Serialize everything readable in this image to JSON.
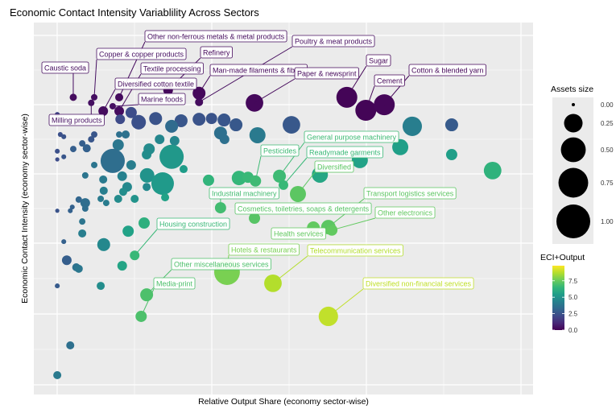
{
  "chart_data": {
    "type": "scatter",
    "title": "Economic Contact Intensity Variablility Across Sectors",
    "xlabel": "Relative Output Share (economy sector-wise)",
    "ylabel": "Economic Contact Intensity (economy sector-wise)",
    "xlim": [
      0,
      100
    ],
    "ylim": [
      0,
      100
    ],
    "grid": true,
    "tick_labels_shown": false,
    "size_legend": {
      "title": "Assets size",
      "values": [
        "0.00",
        "0.25",
        "0.50",
        "0.75",
        "1.00"
      ]
    },
    "color_legend": {
      "title": "ECI+Output",
      "ticks": [
        "0.0",
        "2.5",
        "5.0",
        "7.5"
      ],
      "range": [
        0,
        9.8
      ],
      "palette": "viridis"
    },
    "legend_position": "right",
    "points": [
      {
        "x": 7.9,
        "y": 79.9,
        "size": 0.017,
        "eci": 0.3,
        "label": "Caustic soda"
      },
      {
        "x": 12.1,
        "y": 79.9,
        "size": 0.011,
        "eci": 0.4,
        "label": "Copper & copper products"
      },
      {
        "x": 11.5,
        "y": 78.4,
        "size": 0.011,
        "eci": 0.4,
        "label": "Milling products"
      },
      {
        "x": 17.1,
        "y": 79.9,
        "size": 0.025,
        "eci": 0.3,
        "label": "Other non-ferrous metals & metal products"
      },
      {
        "x": 15.8,
        "y": 77.5,
        "size": 0.011,
        "eci": 0.4,
        "label": "Marine foods"
      },
      {
        "x": 13.9,
        "y": 76.2,
        "size": 0.044,
        "eci": 0.3,
        "label": "Diversified cotton textile"
      },
      {
        "x": 17.1,
        "y": 76.2,
        "size": 0.044,
        "eci": 0.3,
        "label": "Textile processing"
      },
      {
        "x": 26.9,
        "y": 81.8,
        "size": 0.044,
        "eci": 0.2,
        "label": "Refinery"
      },
      {
        "x": 33.1,
        "y": 81.0,
        "size": 0.1,
        "eci": 0.2,
        "label": "Man-made filaments & fibres"
      },
      {
        "x": 33.1,
        "y": 78.6,
        "size": 0.025,
        "eci": 0.3,
        "label": "Poultry & meat products"
      },
      {
        "x": 44.2,
        "y": 78.4,
        "size": 0.22,
        "eci": 0.2,
        "label": "Paper & newsprint"
      },
      {
        "x": 62.7,
        "y": 79.9,
        "size": 0.335,
        "eci": 0.1,
        "label": "Sugar"
      },
      {
        "x": 66.5,
        "y": 76.4,
        "size": 0.335,
        "eci": 0.1,
        "label": "Cement"
      },
      {
        "x": 70.2,
        "y": 77.9,
        "size": 0.335,
        "eci": 0.15,
        "label": "Cotton & blended yarn"
      },
      {
        "x": 4.7,
        "y": 75.3,
        "size": 0.003,
        "eci": 2.0
      },
      {
        "x": 19.5,
        "y": 75.8,
        "size": 0.069,
        "eci": 2.3
      },
      {
        "x": 17.3,
        "y": 74.0,
        "size": 0.044,
        "eci": 2.2
      },
      {
        "x": 21.0,
        "y": 73.2,
        "size": 0.136,
        "eci": 2.4
      },
      {
        "x": 24.4,
        "y": 74.2,
        "size": 0.1,
        "eci": 2.5
      },
      {
        "x": 29.5,
        "y": 73.6,
        "size": 0.1,
        "eci": 2.6
      },
      {
        "x": 27.6,
        "y": 72.1,
        "size": 0.1,
        "eci": 3.4
      },
      {
        "x": 33.1,
        "y": 74.0,
        "size": 0.1,
        "eci": 2.5
      },
      {
        "x": 35.6,
        "y": 74.2,
        "size": 0.069,
        "eci": 2.5
      },
      {
        "x": 38.1,
        "y": 73.8,
        "size": 0.1,
        "eci": 2.6
      },
      {
        "x": 40.5,
        "y": 72.5,
        "size": 0.1,
        "eci": 2.7
      },
      {
        "x": 51.6,
        "y": 72.5,
        "size": 0.22,
        "eci": 2.7
      },
      {
        "x": 37.4,
        "y": 70.3,
        "size": 0.1,
        "eci": 3.6
      },
      {
        "x": 38.2,
        "y": 68.6,
        "size": 0.044,
        "eci": 3.6
      },
      {
        "x": 44.8,
        "y": 69.7,
        "size": 0.177,
        "eci": 4.0
      },
      {
        "x": 75.8,
        "y": 72.1,
        "size": 0.28,
        "eci": 4.2
      },
      {
        "x": 83.7,
        "y": 72.5,
        "size": 0.1,
        "eci": 2.8
      },
      {
        "x": 5.3,
        "y": 69.9,
        "size": 0.003,
        "eci": 2.4
      },
      {
        "x": 6.0,
        "y": 69.3,
        "size": 0.003,
        "eci": 2.5
      },
      {
        "x": 12.1,
        "y": 69.9,
        "size": 0.011,
        "eci": 2.6
      },
      {
        "x": 11.5,
        "y": 68.6,
        "size": 0.011,
        "eci": 2.6
      },
      {
        "x": 9.7,
        "y": 67.5,
        "size": 0.011,
        "eci": 2.9
      },
      {
        "x": 10.6,
        "y": 66.2,
        "size": 0.025,
        "eci": 3.0
      },
      {
        "x": 7.9,
        "y": 66.0,
        "size": 0.011,
        "eci": 2.9
      },
      {
        "x": 4.7,
        "y": 65.4,
        "size": 0.003,
        "eci": 2.4
      },
      {
        "x": 6.0,
        "y": 63.9,
        "size": 0.003,
        "eci": 2.6
      },
      {
        "x": 4.7,
        "y": 63.2,
        "size": 0.001,
        "eci": 2.3
      },
      {
        "x": 17.1,
        "y": 69.9,
        "size": 0.011,
        "eci": 3.6
      },
      {
        "x": 18.4,
        "y": 69.9,
        "size": 0.025,
        "eci": 3.7
      },
      {
        "x": 16.9,
        "y": 67.1,
        "size": 0.069,
        "eci": 3.9
      },
      {
        "x": 15.8,
        "y": 62.8,
        "size": 0.47,
        "eci": 3.5
      },
      {
        "x": 19.5,
        "y": 61.7,
        "size": 0.044,
        "eci": 4.2
      },
      {
        "x": 12.1,
        "y": 61.7,
        "size": 0.011,
        "eci": 3.8
      },
      {
        "x": 10.3,
        "y": 58.9,
        "size": 0.011,
        "eci": 3.8
      },
      {
        "x": 17.7,
        "y": 58.7,
        "size": 0.044,
        "eci": 4.3
      },
      {
        "x": 25.2,
        "y": 68.6,
        "size": 0.044,
        "eci": 4.5
      },
      {
        "x": 28.2,
        "y": 68.2,
        "size": 0.044,
        "eci": 4.5
      },
      {
        "x": 23.1,
        "y": 66.0,
        "size": 0.069,
        "eci": 4.7
      },
      {
        "x": 27.6,
        "y": 63.9,
        "size": 0.47,
        "eci": 5.2
      },
      {
        "x": 30.0,
        "y": 60.6,
        "size": 0.025,
        "eci": 5.4
      },
      {
        "x": 22.6,
        "y": 64.5,
        "size": 0.044,
        "eci": 4.8
      },
      {
        "x": 22.7,
        "y": 58.9,
        "size": 0.136,
        "eci": 5.0
      },
      {
        "x": 25.8,
        "y": 56.7,
        "size": 0.4,
        "eci": 5.3
      },
      {
        "x": 22.6,
        "y": 55.8,
        "size": 0.025,
        "eci": 4.6
      },
      {
        "x": 26.3,
        "y": 53.0,
        "size": 0.025,
        "eci": 5.6
      },
      {
        "x": 18.7,
        "y": 55.8,
        "size": 0.044,
        "eci": 4.6
      },
      {
        "x": 17.9,
        "y": 54.5,
        "size": 0.025,
        "eci": 4.8
      },
      {
        "x": 16.9,
        "y": 52.6,
        "size": 0.025,
        "eci": 4.7
      },
      {
        "x": 20.2,
        "y": 52.6,
        "size": 0.025,
        "eci": 5.0
      },
      {
        "x": 13.9,
        "y": 57.8,
        "size": 0.025,
        "eci": 4.0
      },
      {
        "x": 14.0,
        "y": 54.8,
        "size": 0.025,
        "eci": 4.2
      },
      {
        "x": 13.4,
        "y": 52.6,
        "size": 0.011,
        "eci": 4.0
      },
      {
        "x": 14.5,
        "y": 51.5,
        "size": 0.011,
        "eci": 4.1
      },
      {
        "x": 9.0,
        "y": 52.4,
        "size": 0.011,
        "eci": 3.2
      },
      {
        "x": 10.3,
        "y": 51.5,
        "size": 0.044,
        "eci": 3.5
      },
      {
        "x": 10.3,
        "y": 50.0,
        "size": 0.011,
        "eci": 3.5
      },
      {
        "x": 7.7,
        "y": 50.4,
        "size": 0.003,
        "eci": 3.0
      },
      {
        "x": 7.3,
        "y": 49.4,
        "size": 0.003,
        "eci": 3.0
      },
      {
        "x": 4.7,
        "y": 49.4,
        "size": 0.001,
        "eci": 2.5
      },
      {
        "x": 9.7,
        "y": 46.5,
        "size": 0.011,
        "eci": 3.8
      },
      {
        "x": 9.7,
        "y": 43.3,
        "size": 0.025,
        "eci": 4.2
      },
      {
        "x": 6.0,
        "y": 41.1,
        "size": 0.003,
        "eci": 3.0
      },
      {
        "x": 6.6,
        "y": 36.1,
        "size": 0.044,
        "eci": 2.9
      },
      {
        "x": 8.5,
        "y": 34.2,
        "size": 0.025,
        "eci": 3.7
      },
      {
        "x": 9.0,
        "y": 33.8,
        "size": 0.025,
        "eci": 3.9
      },
      {
        "x": 4.7,
        "y": 29.2,
        "size": 0.003,
        "eci": 2.8
      },
      {
        "x": 13.4,
        "y": 29.2,
        "size": 0.025,
        "eci": 4.8
      },
      {
        "x": 14.0,
        "y": 40.3,
        "size": 0.1,
        "eci": 4.6
      },
      {
        "x": 17.7,
        "y": 34.6,
        "size": 0.044,
        "eci": 5.7
      },
      {
        "x": 18.9,
        "y": 43.9,
        "size": 0.069,
        "eci": 5.6
      },
      {
        "x": 22.1,
        "y": 46.1,
        "size": 0.069,
        "eci": 6.2
      },
      {
        "x": 7.3,
        "y": 13.2,
        "size": 0.025,
        "eci": 3.6
      },
      {
        "x": 4.7,
        "y": 5.2,
        "size": 0.025,
        "eci": 4.0
      },
      {
        "x": 35.0,
        "y": 57.6,
        "size": 0.069,
        "eci": 6.4
      },
      {
        "x": 41.1,
        "y": 58.2,
        "size": 0.136,
        "eci": 6.5
      },
      {
        "x": 42.9,
        "y": 58.4,
        "size": 0.069,
        "eci": 6.6
      },
      {
        "x": 44.4,
        "y": 57.4,
        "size": 0.069,
        "eci": 6.7,
        "label": "Pesticides"
      },
      {
        "x": 49.2,
        "y": 58.7,
        "size": 0.1,
        "eci": 6.7,
        "label": "General purpose machinery"
      },
      {
        "x": 50.0,
        "y": 56.3,
        "size": 0.044,
        "eci": 6.6,
        "label": "Readymade garments"
      },
      {
        "x": 52.9,
        "y": 53.9,
        "size": 0.177,
        "eci": 7.3,
        "label": "Diversified"
      },
      {
        "x": 57.3,
        "y": 59.1,
        "size": 0.177,
        "eci": 5.8
      },
      {
        "x": 65.3,
        "y": 63.0,
        "size": 0.177,
        "eci": 5.6
      },
      {
        "x": 73.4,
        "y": 66.5,
        "size": 0.177,
        "eci": 5.5
      },
      {
        "x": 83.7,
        "y": 64.5,
        "size": 0.069,
        "eci": 5.5
      },
      {
        "x": 91.9,
        "y": 60.2,
        "size": 0.22,
        "eci": 6.3
      },
      {
        "x": 37.4,
        "y": 50.2,
        "size": 0.069,
        "eci": 6.8,
        "label": "Industrial machinery"
      },
      {
        "x": 44.2,
        "y": 47.4,
        "size": 0.069,
        "eci": 7.2,
        "label": "Cosmetics, toiletries, soaps & detergents"
      },
      {
        "x": 56.0,
        "y": 44.8,
        "size": 0.1,
        "eci": 7.4,
        "label": "Health services"
      },
      {
        "x": 59.0,
        "y": 45.0,
        "size": 0.136,
        "eci": 7.3,
        "label": "Transport logistics services"
      },
      {
        "x": 59.7,
        "y": 44.2,
        "size": 0.069,
        "eci": 7.4,
        "label": "Other electronics"
      },
      {
        "x": 20.2,
        "y": 37.4,
        "size": 0.044,
        "eci": 6.6,
        "label": "Housing construction"
      },
      {
        "x": 38.7,
        "y": 32.9,
        "size": 0.54,
        "eci": 7.8,
        "label": "Hotels & restaurants"
      },
      {
        "x": 47.9,
        "y": 29.9,
        "size": 0.22,
        "eci": 8.7,
        "label": "Telecommunication services"
      },
      {
        "x": 59.0,
        "y": 21.0,
        "size": 0.28,
        "eci": 8.9,
        "label": "Diversified non-financial services"
      },
      {
        "x": 22.6,
        "y": 26.8,
        "size": 0.1,
        "eci": 7.0,
        "label": "Other miscellaneous services"
      },
      {
        "x": 21.5,
        "y": 21.0,
        "size": 0.069,
        "eci": 7.0,
        "label": "Media-print"
      }
    ]
  }
}
